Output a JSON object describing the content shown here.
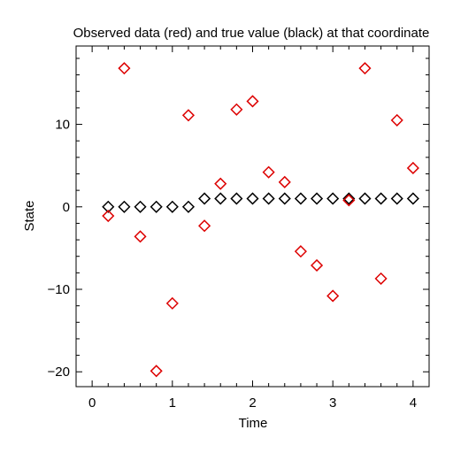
{
  "chart_data": {
    "type": "scatter",
    "title": "Observed data (red) and true value (black) at that coordinate",
    "xlabel": "Time",
    "ylabel": "State",
    "xlim": [
      -0.2,
      4.2
    ],
    "ylim": [
      -21.8,
      19.5
    ],
    "x_ticks": [
      0,
      1,
      2,
      3,
      4
    ],
    "x_tick_labels": [
      "0",
      "1",
      "2",
      "3",
      "4"
    ],
    "y_ticks": [
      -20,
      -10,
      0,
      10
    ],
    "y_tick_labels": [
      "−20",
      "−10",
      "0",
      "10"
    ],
    "x_minor_step": 0.2,
    "y_minor_step": 2,
    "grid": false,
    "marker": "diamond-open",
    "series": [
      {
        "color": "#000000",
        "x": [
          0.2,
          0.4,
          0.6,
          0.8,
          1.0,
          1.2,
          1.4,
          1.6,
          1.8,
          2.0,
          2.2,
          2.4,
          2.6,
          2.8,
          3.0,
          3.2,
          3.4,
          3.6,
          3.8,
          4.0
        ],
        "y": [
          0,
          0,
          0,
          0,
          0,
          0,
          1,
          1,
          1,
          1,
          1,
          1,
          1,
          1,
          1,
          1,
          1,
          1,
          1,
          1
        ]
      },
      {
        "color": "#dd0000",
        "x": [
          0.2,
          0.4,
          0.6,
          0.8,
          1.0,
          1.2,
          1.4,
          1.6,
          1.8,
          2.0,
          2.2,
          2.4,
          2.6,
          2.8,
          3.0,
          3.2,
          3.4,
          3.6,
          3.8,
          4.0
        ],
        "y": [
          -1.1,
          16.8,
          -3.6,
          -19.9,
          -11.7,
          11.1,
          -2.3,
          2.8,
          11.8,
          12.8,
          4.2,
          3.0,
          -5.4,
          -7.1,
          -10.8,
          0.8,
          16.8,
          -8.7,
          10.5,
          4.7
        ]
      }
    ]
  }
}
